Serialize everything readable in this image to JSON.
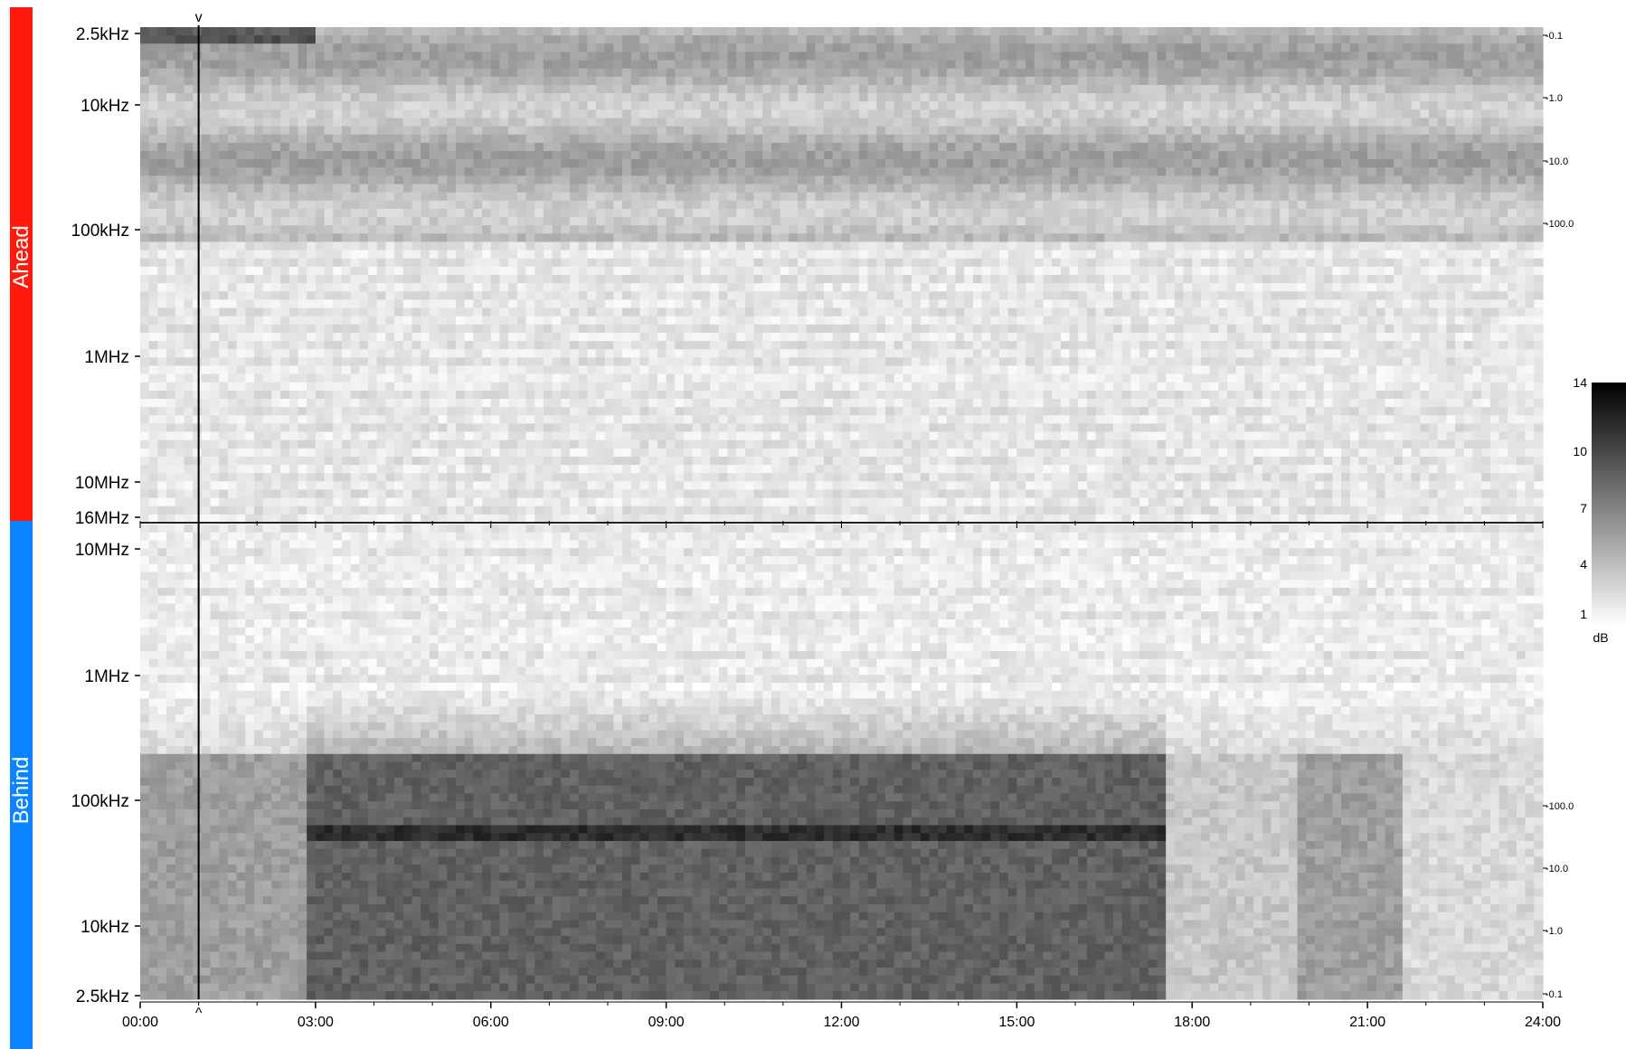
{
  "panels": {
    "top_label": "Ahead",
    "bottom_label": "Behind",
    "top_color": "#ff1a0d",
    "bottom_color": "#0a84ff"
  },
  "chart_data": {
    "type": "heatmap",
    "x_ticks": [
      "00:00",
      "03:00",
      "06:00",
      "09:00",
      "12:00",
      "15:00",
      "18:00",
      "21:00",
      "24:00"
    ],
    "x_range_hours": [
      0,
      24
    ],
    "top_y_ticks": [
      "2.5kHz",
      "10kHz",
      "100kHz",
      "1MHz",
      "10MHz",
      "16MHz"
    ],
    "bottom_y_ticks": [
      "10MHz",
      "1MHz",
      "100kHz",
      "10kHz",
      "2.5kHz"
    ],
    "top_right_ticks": [
      "0.1",
      "1.0",
      "10.0",
      "100.0"
    ],
    "bottom_right_ticks": [
      "100.0",
      "10.0",
      "1.0",
      "0.1"
    ],
    "colorbar": {
      "ticks": [
        "14",
        "10",
        "7",
        "4",
        "1"
      ],
      "unit": "dB",
      "range": [
        1,
        14
      ]
    },
    "marker_time_hours": 1.0,
    "marker_top_symbol": "v",
    "marker_bottom_symbol": "^",
    "colors": {
      "low": "#ffffff",
      "high": "#000000"
    }
  }
}
